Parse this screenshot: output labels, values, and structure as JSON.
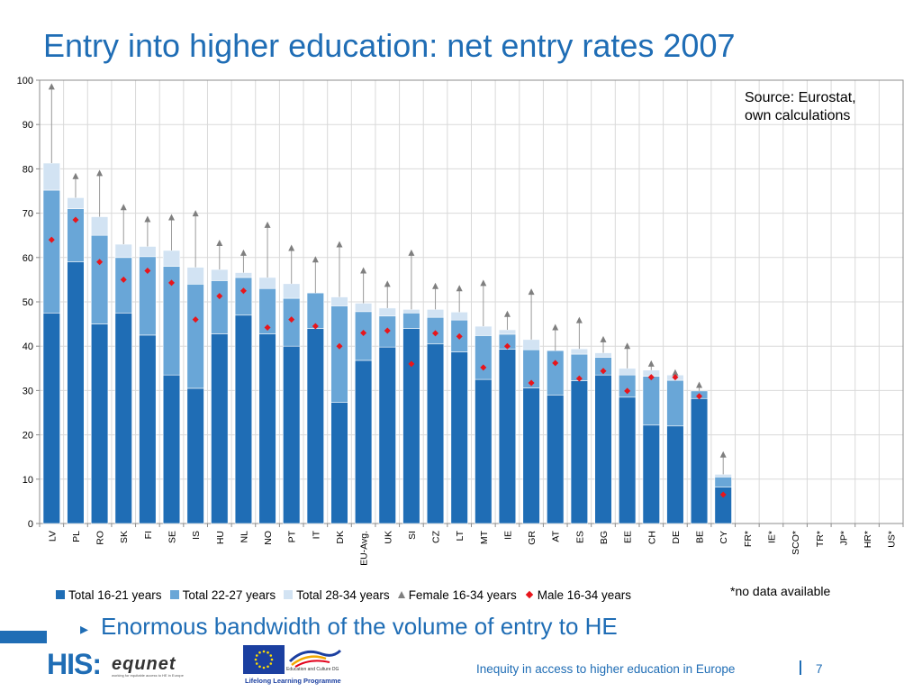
{
  "slide": {
    "title": "Entry into higher education: net entry rates 2007",
    "bullet": "Enormous bandwidth of the volume of entry to HE",
    "footer": "Inequity in access to higher education in Europe",
    "page_number": "7",
    "source_line1": "Source: Eurostat,",
    "source_line2": "own calculations",
    "nodata_note": "*no data available"
  },
  "logos": {
    "his": "HIS:",
    "equnet": "equnet",
    "equnet_tag": "working for equitable access to HE in Europe",
    "eu_dg": "Education and Culture DG",
    "eu_programme": "Lifelong Learning Programme"
  },
  "colors": {
    "accent": "#1f6db5",
    "series_16_21": "#1f6db5",
    "series_22_27": "#69a6d7",
    "series_28_34": "#d2e3f3",
    "female": "#7f7f7f",
    "male": "#e8151b",
    "plot_border": "#8c8c8c",
    "grid": "#d9d9d9"
  },
  "chart_data": {
    "type": "bar",
    "stacked": true,
    "ylim": [
      0,
      100
    ],
    "yticks": [
      0,
      10,
      20,
      30,
      40,
      50,
      60,
      70,
      80,
      90,
      100
    ],
    "grid": true,
    "legend_position": "bottom",
    "categories": [
      "LV",
      "PL",
      "RO",
      "SK",
      "FI",
      "SE",
      "IS",
      "HU",
      "NL",
      "NO",
      "PT",
      "IT",
      "DK",
      "EU-Avg.",
      "UK",
      "SI",
      "CZ",
      "LT",
      "MT",
      "IE",
      "GR",
      "AT",
      "ES",
      "BG",
      "EE",
      "CH",
      "DE",
      "BE",
      "CY",
      "FR*",
      "IE*",
      "SCO*",
      "TR*",
      "JP*",
      "HR*",
      "US*"
    ],
    "series": [
      {
        "name": "Total 16-21 years",
        "kind": "bar",
        "values": [
          47.5,
          59,
          45,
          47.5,
          42.5,
          33.5,
          30.5,
          42.8,
          47,
          42.8,
          40,
          44,
          27.3,
          36.8,
          39.8,
          44,
          40.5,
          38.7,
          32.5,
          39.3,
          30.6,
          29,
          32.2,
          33.5,
          28.5,
          22.2,
          22,
          28.2,
          8.2,
          null,
          null,
          null,
          null,
          null,
          null,
          null
        ]
      },
      {
        "name": "Total 22-27 years",
        "kind": "bar",
        "values": [
          27.7,
          12,
          20,
          12.5,
          17.7,
          24.5,
          23.5,
          12,
          8.5,
          10.2,
          10.8,
          8,
          21.8,
          11,
          7,
          3.5,
          6,
          7.2,
          9.9,
          3.4,
          8.6,
          10,
          6,
          4,
          5,
          11,
          10.3,
          1.7,
          2.3,
          null,
          null,
          null,
          null,
          null,
          null,
          null
        ]
      },
      {
        "name": "Total 28-34 years",
        "kind": "bar",
        "values": [
          6.1,
          2.5,
          4.2,
          3,
          2.3,
          3.6,
          3.8,
          2.5,
          1.1,
          2.5,
          3.3,
          0,
          2,
          1.9,
          1.8,
          0.8,
          1.8,
          1.8,
          2.1,
          1,
          2.3,
          0,
          1.2,
          1,
          1.5,
          1.4,
          1.2,
          0,
          0.6,
          null,
          null,
          null,
          null,
          null,
          null,
          null
        ]
      },
      {
        "name": "Female 16-34 years",
        "kind": "marker",
        "marker": "triangle",
        "values": [
          98.5,
          78.3,
          79,
          71.3,
          68.6,
          69,
          69.9,
          63.2,
          61,
          67.3,
          62.1,
          59.5,
          62.9,
          57,
          54,
          61,
          53.5,
          53,
          54.2,
          47.2,
          52.2,
          44.2,
          45.8,
          41.5,
          40,
          36,
          34,
          31.2,
          15.5,
          null,
          null,
          null,
          null,
          null,
          null,
          null
        ]
      },
      {
        "name": "Male 16-34 years",
        "kind": "marker",
        "marker": "diamond",
        "values": [
          64,
          68.5,
          59,
          55,
          57,
          54.3,
          46,
          51.3,
          52.5,
          44.2,
          46,
          44.5,
          40,
          43,
          43.5,
          36,
          42.9,
          42.2,
          35.2,
          40,
          31.7,
          36.2,
          32.7,
          34.4,
          29.9,
          33,
          33,
          28.7,
          6.5,
          null,
          null,
          null,
          null,
          null,
          null,
          null
        ]
      }
    ]
  }
}
